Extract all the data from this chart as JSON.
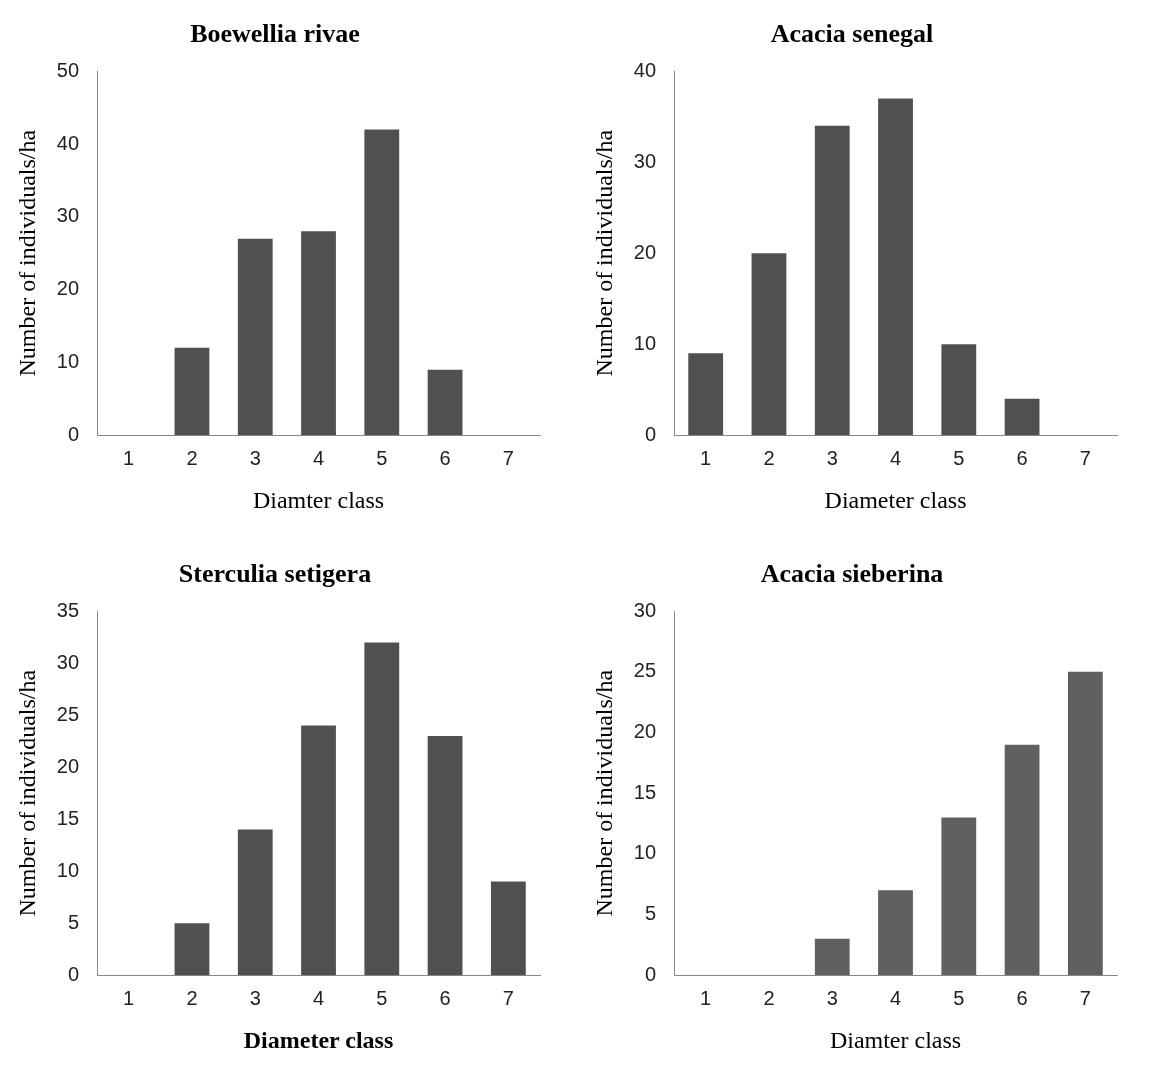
{
  "chart_data": [
    {
      "type": "bar",
      "title": "Boewellia rivae",
      "xlabel": "Diamter class",
      "ylabel": "Number of individuals/ha",
      "categories": [
        "1",
        "2",
        "3",
        "4",
        "5",
        "6",
        "7"
      ],
      "values": [
        0,
        12,
        27,
        28,
        42,
        9,
        0
      ],
      "color": "#505050",
      "ylim": [
        0,
        50
      ],
      "yticks": [
        0,
        10,
        20,
        30,
        40,
        50
      ],
      "grid": false,
      "legend": false
    },
    {
      "type": "bar",
      "title": "Acacia senegal",
      "xlabel": "Diameter class",
      "ylabel": "Number of individuals/ha",
      "categories": [
        "1",
        "2",
        "3",
        "4",
        "5",
        "6",
        "7"
      ],
      "values": [
        9,
        20,
        34,
        37,
        10,
        4,
        0
      ],
      "color": "#505050",
      "ylim": [
        0,
        40
      ],
      "yticks": [
        0,
        10,
        20,
        30,
        40
      ],
      "grid": false,
      "legend": false
    },
    {
      "type": "bar",
      "title": "Sterculia setigera",
      "xlabel": "Diameter class",
      "ylabel": "Number of individuals/ha",
      "categories": [
        "1",
        "2",
        "3",
        "4",
        "5",
        "6",
        "7"
      ],
      "values": [
        0,
        5,
        14,
        24,
        32,
        23,
        9
      ],
      "color": "#505050",
      "ylim": [
        0,
        35
      ],
      "yticks": [
        0,
        5,
        10,
        15,
        20,
        25,
        30,
        35
      ],
      "grid": false,
      "legend": false
    },
    {
      "type": "bar",
      "title": "Acacia sieberina",
      "xlabel": "Diamter class",
      "ylabel": "Number of individuals/ha",
      "categories": [
        "1",
        "2",
        "3",
        "4",
        "5",
        "6",
        "7"
      ],
      "values": [
        0,
        0,
        3,
        7,
        13,
        19,
        25
      ],
      "color": "#606060",
      "ylim": [
        0,
        30
      ],
      "yticks": [
        0,
        5,
        10,
        15,
        20,
        25,
        30
      ],
      "grid": false,
      "legend": false
    }
  ]
}
